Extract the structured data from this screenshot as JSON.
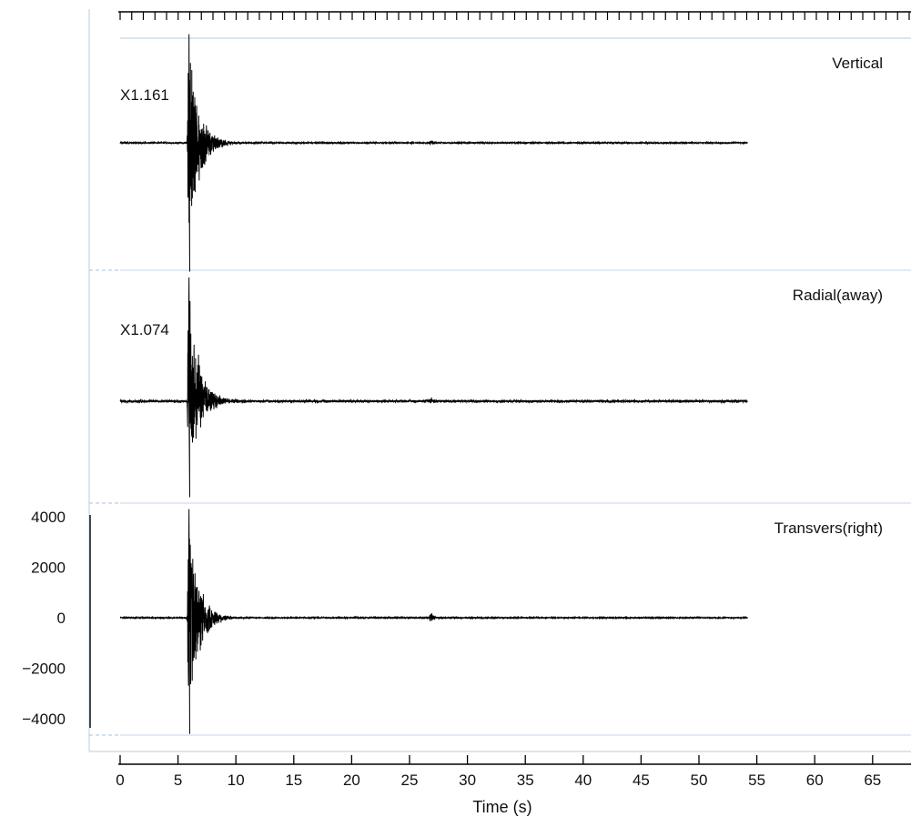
{
  "chart_data": {
    "type": "line",
    "xlabel": "Time (s)",
    "x_ticks": [
      0,
      5,
      10,
      15,
      20,
      25,
      30,
      35,
      40,
      45,
      50,
      55,
      60,
      65
    ],
    "xlim": [
      0,
      68
    ],
    "trace_span": [
      0,
      54.2
    ],
    "ylim": [
      -4600,
      4600
    ],
    "y_ticks": [
      4000,
      2000,
      0,
      -2000,
      -4000
    ],
    "y_tick_labels": [
      "4000",
      "2000",
      "0",
      "−2000",
      "−4000"
    ],
    "series": [
      {
        "name": "Vertical",
        "scale_label": "X1.161",
        "events": [
          {
            "t": 5.9,
            "peak_up": 4300,
            "peak_down": -5100,
            "decay_s": 1.6
          },
          {
            "t": 26.8,
            "peak_up": 160,
            "peak_down": -180,
            "decay_s": 0.5
          }
        ],
        "noise": 20
      },
      {
        "name": "Radial(away)",
        "scale_label": "X1.074",
        "events": [
          {
            "t": 5.9,
            "peak_up": 4900,
            "peak_down": -3800,
            "decay_s": 1.6
          },
          {
            "t": 26.8,
            "peak_up": 180,
            "peak_down": -180,
            "decay_s": 0.5
          }
        ],
        "noise": 45
      },
      {
        "name": "Transvers(right)",
        "scale_label": "",
        "events": [
          {
            "t": 5.9,
            "peak_up": 4300,
            "peak_down": -4600,
            "decay_s": 1.6
          },
          {
            "t": 26.8,
            "peak_up": 350,
            "peak_down": -250,
            "decay_s": 0.5
          }
        ],
        "noise": 18
      }
    ]
  },
  "colors": {
    "trace": "#000000",
    "frame": "#c5d5e8",
    "separator": "#a8c0dc",
    "axis": "#000000"
  }
}
